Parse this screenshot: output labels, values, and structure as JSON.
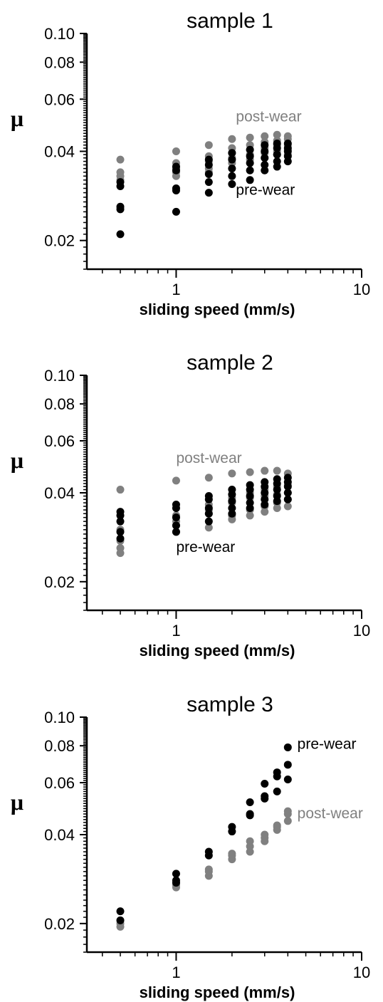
{
  "colors": {
    "pre": "#000000",
    "post": "#808080",
    "axis": "#000000"
  },
  "chart_data": [
    {
      "type": "scatter",
      "title": "sample 1",
      "xlabel": "sliding speed (mm/s)",
      "ylabel": "μ",
      "xscale": "log",
      "yscale": "log",
      "xlim": [
        0.33,
        10
      ],
      "ylim": [
        0.016,
        0.1
      ],
      "xticks": [
        {
          "v": 1,
          "label": "1"
        },
        {
          "v": 10,
          "label": "10"
        }
      ],
      "yticks": [
        {
          "v": 0.02,
          "label": "0.02"
        },
        {
          "v": 0.04,
          "label": "0.04"
        },
        {
          "v": 0.06,
          "label": "0.06"
        },
        {
          "v": 0.08,
          "label": "0.08"
        },
        {
          "v": 0.1,
          "label": "0.10"
        }
      ],
      "annotations": [
        {
          "text": "post-wear",
          "x": 2.1,
          "y": 0.0505,
          "color": "post"
        },
        {
          "text": "pre-wear",
          "x": 2.1,
          "y": 0.0285,
          "color": "pre"
        }
      ],
      "series": [
        {
          "key": "post",
          "points": [
            [
              0.5,
              0.0375
            ],
            [
              0.5,
              0.034
            ],
            [
              0.5,
              0.033
            ],
            [
              0.5,
              0.032
            ],
            [
              1,
              0.04
            ],
            [
              1,
              0.0365
            ],
            [
              1,
              0.035
            ],
            [
              1,
              0.034
            ],
            [
              1,
              0.033
            ],
            [
              1.5,
              0.042
            ],
            [
              1.5,
              0.0385
            ],
            [
              1.5,
              0.037
            ],
            [
              1.5,
              0.035
            ],
            [
              1.5,
              0.034
            ],
            [
              2,
              0.044
            ],
            [
              2,
              0.041
            ],
            [
              2,
              0.0395
            ],
            [
              2,
              0.038
            ],
            [
              2,
              0.0365
            ],
            [
              2.5,
              0.0445
            ],
            [
              2.5,
              0.042
            ],
            [
              2.5,
              0.0405
            ],
            [
              2.5,
              0.039
            ],
            [
              2.5,
              0.0375
            ],
            [
              3,
              0.045
            ],
            [
              3,
              0.043
            ],
            [
              3,
              0.041
            ],
            [
              3,
              0.0395
            ],
            [
              3,
              0.038
            ],
            [
              3.5,
              0.0455
            ],
            [
              3.5,
              0.0435
            ],
            [
              3.5,
              0.042
            ],
            [
              3.5,
              0.04
            ],
            [
              3.5,
              0.039
            ],
            [
              4,
              0.045
            ],
            [
              4,
              0.044
            ],
            [
              4,
              0.042
            ],
            [
              4,
              0.0405
            ],
            [
              4,
              0.039
            ]
          ]
        },
        {
          "key": "pre",
          "points": [
            [
              0.5,
              0.0315
            ],
            [
              0.5,
              0.0305
            ],
            [
              0.5,
              0.026
            ],
            [
              0.5,
              0.0255
            ],
            [
              0.5,
              0.021
            ],
            [
              1,
              0.0355
            ],
            [
              1,
              0.0345
            ],
            [
              1,
              0.03
            ],
            [
              1,
              0.0295
            ],
            [
              1,
              0.025
            ],
            [
              1.5,
              0.0375
            ],
            [
              1.5,
              0.036
            ],
            [
              1.5,
              0.0335
            ],
            [
              1.5,
              0.0315
            ],
            [
              1.5,
              0.029
            ],
            [
              2,
              0.0395
            ],
            [
              2,
              0.0375
            ],
            [
              2,
              0.035
            ],
            [
              2,
              0.033
            ],
            [
              2,
              0.031
            ],
            [
              2.5,
              0.0405
            ],
            [
              2.5,
              0.0385
            ],
            [
              2.5,
              0.0365
            ],
            [
              2.5,
              0.0345
            ],
            [
              2.5,
              0.032
            ],
            [
              3,
              0.042
            ],
            [
              3,
              0.04
            ],
            [
              3,
              0.038
            ],
            [
              3,
              0.036
            ],
            [
              3,
              0.0345
            ],
            [
              3.5,
              0.0425
            ],
            [
              3.5,
              0.041
            ],
            [
              3.5,
              0.039
            ],
            [
              3.5,
              0.037
            ],
            [
              3.5,
              0.0355
            ],
            [
              4,
              0.0425
            ],
            [
              4,
              0.041
            ],
            [
              4,
              0.04
            ],
            [
              4,
              0.0385
            ],
            [
              4,
              0.037
            ]
          ]
        }
      ]
    },
    {
      "type": "scatter",
      "title": "sample 2",
      "xlabel": "sliding speed (mm/s)",
      "ylabel": "μ",
      "xscale": "log",
      "yscale": "log",
      "xlim": [
        0.33,
        10
      ],
      "ylim": [
        0.016,
        0.1
      ],
      "xticks": [
        {
          "v": 1,
          "label": "1"
        },
        {
          "v": 10,
          "label": "10"
        }
      ],
      "yticks": [
        {
          "v": 0.02,
          "label": "0.02"
        },
        {
          "v": 0.04,
          "label": "0.04"
        },
        {
          "v": 0.06,
          "label": "0.06"
        },
        {
          "v": 0.08,
          "label": "0.08"
        },
        {
          "v": 0.1,
          "label": "0.10"
        }
      ],
      "annotations": [
        {
          "text": "post-wear",
          "x": 1.0,
          "y": 0.0505,
          "color": "post"
        },
        {
          "text": "pre-wear",
          "x": 1.0,
          "y": 0.0252,
          "color": "pre"
        }
      ],
      "series": [
        {
          "key": "post",
          "points": [
            [
              0.5,
              0.041
            ],
            [
              0.5,
              0.03
            ],
            [
              0.5,
              0.0275
            ],
            [
              0.5,
              0.026
            ],
            [
              0.5,
              0.025
            ],
            [
              1,
              0.044
            ],
            [
              1,
              0.0335
            ],
            [
              1,
              0.032
            ],
            [
              1,
              0.031
            ],
            [
              1,
              0.0295
            ],
            [
              1.5,
              0.045
            ],
            [
              1.5,
              0.0365
            ],
            [
              1.5,
              0.035
            ],
            [
              1.5,
              0.034
            ],
            [
              1.5,
              0.0305
            ],
            [
              2,
              0.0465
            ],
            [
              2,
              0.0385
            ],
            [
              2,
              0.037
            ],
            [
              2,
              0.0335
            ],
            [
              2,
              0.0325
            ],
            [
              2.5,
              0.047
            ],
            [
              2.5,
              0.04
            ],
            [
              2.5,
              0.0385
            ],
            [
              2.5,
              0.035
            ],
            [
              2.5,
              0.0335
            ],
            [
              3,
              0.0475
            ],
            [
              3,
              0.041
            ],
            [
              3,
              0.039
            ],
            [
              3,
              0.036
            ],
            [
              3,
              0.0345
            ],
            [
              3.5,
              0.0475
            ],
            [
              3.5,
              0.042
            ],
            [
              3.5,
              0.0395
            ],
            [
              3.5,
              0.037
            ],
            [
              3.5,
              0.0355
            ],
            [
              4,
              0.0465
            ],
            [
              4,
              0.0425
            ],
            [
              4,
              0.04
            ],
            [
              4,
              0.038
            ],
            [
              4,
              0.036
            ]
          ]
        },
        {
          "key": "pre",
          "points": [
            [
              0.5,
              0.0345
            ],
            [
              0.5,
              0.0335
            ],
            [
              0.5,
              0.032
            ],
            [
              0.5,
              0.0295
            ],
            [
              0.5,
              0.028
            ],
            [
              1,
              0.0365
            ],
            [
              1,
              0.0355
            ],
            [
              1,
              0.033
            ],
            [
              1,
              0.031
            ],
            [
              1,
              0.0295
            ],
            [
              1.5,
              0.039
            ],
            [
              1.5,
              0.038
            ],
            [
              1.5,
              0.0355
            ],
            [
              1.5,
              0.034
            ],
            [
              1.5,
              0.032
            ],
            [
              2,
              0.041
            ],
            [
              2,
              0.0395
            ],
            [
              2,
              0.0375
            ],
            [
              2,
              0.0355
            ],
            [
              2,
              0.034
            ],
            [
              2.5,
              0.0425
            ],
            [
              2.5,
              0.041
            ],
            [
              2.5,
              0.039
            ],
            [
              2.5,
              0.037
            ],
            [
              2.5,
              0.0355
            ],
            [
              3,
              0.0435
            ],
            [
              3,
              0.042
            ],
            [
              3,
              0.04
            ],
            [
              3,
              0.038
            ],
            [
              3,
              0.0365
            ],
            [
              3.5,
              0.0445
            ],
            [
              3.5,
              0.043
            ],
            [
              3.5,
              0.041
            ],
            [
              3.5,
              0.039
            ],
            [
              3.5,
              0.0375
            ],
            [
              4,
              0.045
            ],
            [
              4,
              0.0435
            ],
            [
              4,
              0.042
            ],
            [
              4,
              0.04
            ],
            [
              4,
              0.038
            ]
          ]
        }
      ]
    },
    {
      "type": "scatter",
      "title": "sample 3",
      "xlabel": "sliding speed (mm/s)",
      "ylabel": "μ",
      "xscale": "log",
      "yscale": "log",
      "xlim": [
        0.33,
        10
      ],
      "ylim": [
        0.016,
        0.1
      ],
      "xticks": [
        {
          "v": 1,
          "label": "1"
        },
        {
          "v": 10,
          "label": "10"
        }
      ],
      "yticks": [
        {
          "v": 0.02,
          "label": "0.02"
        },
        {
          "v": 0.04,
          "label": "0.04"
        },
        {
          "v": 0.06,
          "label": "0.06"
        },
        {
          "v": 0.08,
          "label": "0.08"
        },
        {
          "v": 0.1,
          "label": "0.10"
        }
      ],
      "annotations": [
        {
          "text": "pre-wear",
          "x": 4.5,
          "y": 0.078,
          "color": "pre"
        },
        {
          "text": "post-wear",
          "x": 4.5,
          "y": 0.0455,
          "color": "post"
        }
      ],
      "series": [
        {
          "key": "post",
          "points": [
            [
              0.5,
              0.0205
            ],
            [
              0.5,
              0.02
            ],
            [
              0.5,
              0.0195
            ],
            [
              1,
              0.0275
            ],
            [
              1,
              0.027
            ],
            [
              1,
              0.0265
            ],
            [
              1.5,
              0.0305
            ],
            [
              1.5,
              0.03
            ],
            [
              1.5,
              0.029
            ],
            [
              2,
              0.0345
            ],
            [
              2,
              0.034
            ],
            [
              2,
              0.033
            ],
            [
              2.5,
              0.038
            ],
            [
              2.5,
              0.0365
            ],
            [
              2.5,
              0.035
            ],
            [
              3,
              0.04
            ],
            [
              3,
              0.039
            ],
            [
              3,
              0.038
            ],
            [
              3.5,
              0.043
            ],
            [
              3.5,
              0.0425
            ],
            [
              3.5,
              0.0415
            ],
            [
              4,
              0.048
            ],
            [
              4,
              0.047
            ],
            [
              4,
              0.0445
            ]
          ]
        },
        {
          "key": "pre",
          "points": [
            [
              0.5,
              0.022
            ],
            [
              0.5,
              0.0205
            ],
            [
              1,
              0.0295
            ],
            [
              1,
              0.028
            ],
            [
              1,
              0.0275
            ],
            [
              1.5,
              0.035
            ],
            [
              1.5,
              0.034
            ],
            [
              2,
              0.0425
            ],
            [
              2,
              0.041
            ],
            [
              2.5,
              0.0515
            ],
            [
              2.5,
              0.047
            ],
            [
              2.5,
              0.0465
            ],
            [
              3,
              0.0595
            ],
            [
              3,
              0.054
            ],
            [
              3,
              0.053
            ],
            [
              3.5,
              0.065
            ],
            [
              3.5,
              0.063
            ],
            [
              3.5,
              0.056
            ],
            [
              4,
              0.079
            ],
            [
              4,
              0.069
            ],
            [
              4,
              0.0615
            ]
          ]
        }
      ]
    }
  ]
}
